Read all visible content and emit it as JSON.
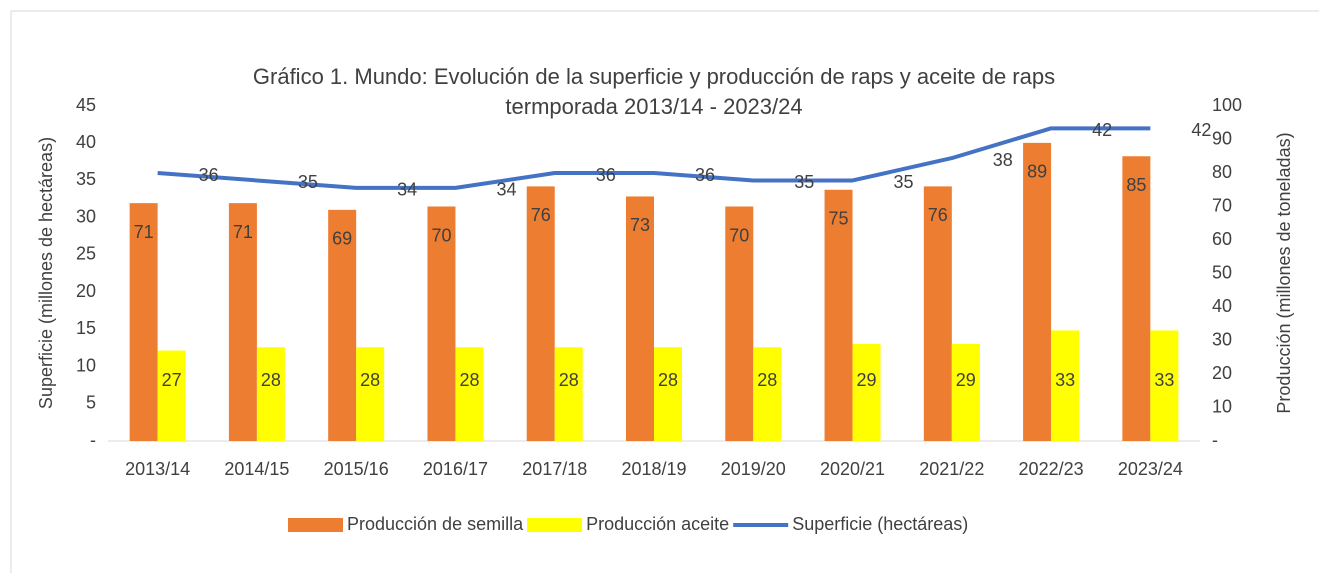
{
  "chart_data": {
    "type": "bar_line",
    "title": "Gráfico 1. Mundo: Evolución de la superficie y producción de raps y aceite de raps",
    "subtitle": "termporada 2013/14 - 2023/24",
    "y_label": "Superficie (millones de hectáreas)",
    "y2_label": "Producción (millones de toneladas)",
    "categories": [
      "2013/14",
      "2014/15",
      "2015/16",
      "2016/17",
      "2017/18",
      "2018/19",
      "2019/20",
      "2020/21",
      "2021/22",
      "2022/23",
      "2023/24"
    ],
    "series": [
      {
        "name": "Producción de semilla",
        "type": "bar",
        "axis": "y2",
        "color": "#ED7D31",
        "values": [
          71,
          71,
          69,
          70,
          76,
          73,
          70,
          75,
          76,
          89,
          85
        ]
      },
      {
        "name": "Producción aceite",
        "type": "bar",
        "axis": "y2",
        "color": "#FFFF00",
        "values": [
          27,
          28,
          28,
          28,
          28,
          28,
          28,
          29,
          29,
          33,
          33
        ]
      },
      {
        "name": "Superficie (hectáreas)",
        "type": "line",
        "color": "#4472C4",
        "values": [
          36,
          35,
          34,
          34,
          36,
          36,
          35,
          35,
          38,
          42,
          42
        ]
      }
    ],
    "ylim": [
      0,
      45
    ],
    "yticks": [
      {
        "value": 0,
        "label": "-"
      },
      5,
      10,
      15,
      20,
      25,
      30,
      35,
      40,
      45
    ],
    "y2lim": [
      0,
      100
    ],
    "y2ticks": [
      {
        "value": 0,
        "label": "-"
      },
      10,
      20,
      30,
      40,
      50,
      60,
      70,
      80,
      90,
      100
    ],
    "grid": false,
    "legend": "bottom"
  }
}
